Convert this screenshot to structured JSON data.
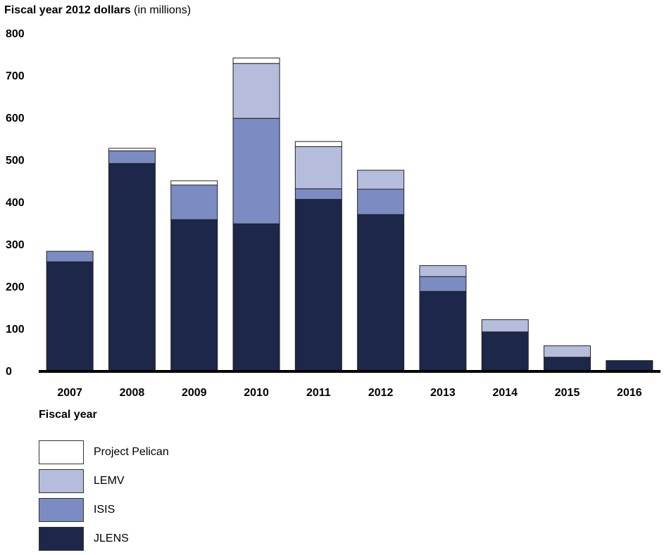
{
  "chart_data": {
    "type": "bar",
    "stacked": true,
    "title": "",
    "ylabel_bold": "Fiscal year 2012 dollars",
    "ylabel_note": "(in millions)",
    "xlabel": "Fiscal year",
    "ylim": [
      0,
      800
    ],
    "yticks": [
      "0",
      "100",
      "200",
      "300",
      "400",
      "500",
      "600",
      "700",
      "800"
    ],
    "categories": [
      "2007",
      "2008",
      "2009",
      "2010",
      "2011",
      "2012",
      "2013",
      "2014",
      "2015",
      "2016"
    ],
    "series": [
      {
        "name": "JLENS",
        "color": "#1c2749",
        "values": [
          258,
          491,
          358,
          348,
          406,
          370,
          188,
          92,
          32,
          24
        ]
      },
      {
        "name": "ISIS",
        "color": "#7a8cc1",
        "values": [
          25,
          30,
          82,
          250,
          25,
          60,
          35,
          0,
          0,
          0
        ]
      },
      {
        "name": "LEMV",
        "color": "#b5bcdc",
        "values": [
          0,
          0,
          0,
          130,
          100,
          45,
          26,
          29,
          27,
          0
        ]
      },
      {
        "name": "Project Pelican",
        "color": "#ffffff",
        "values": [
          0,
          6,
          10,
          13,
          12,
          0,
          0,
          0,
          0,
          0
        ]
      }
    ],
    "legend": {
      "position": "bottom-left",
      "items": [
        "Project Pelican",
        "LEMV",
        "ISIS",
        "JLENS"
      ]
    }
  }
}
